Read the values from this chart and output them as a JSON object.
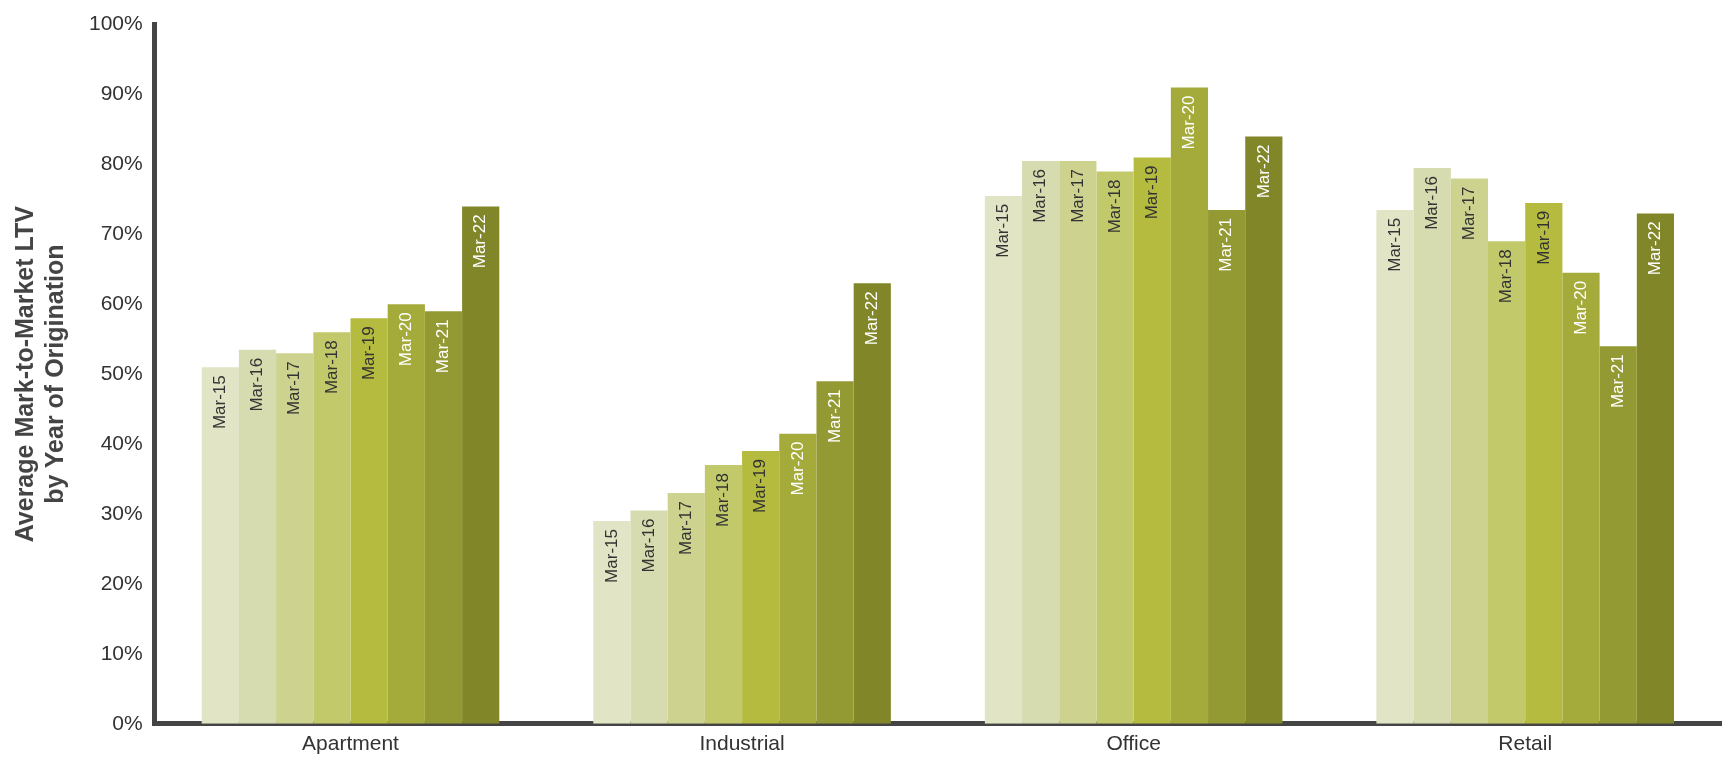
{
  "chart_data": {
    "type": "bar",
    "ylabel": "Average Mark-to-Market LTV\nby Year of Origination",
    "categories": [
      "Apartment",
      "Industrial",
      "Office",
      "Retail"
    ],
    "ylim": [
      0,
      100
    ],
    "yticks": [
      {
        "value": 0,
        "label": "0%"
      },
      {
        "value": 10,
        "label": "10%"
      },
      {
        "value": 20,
        "label": "20%"
      },
      {
        "value": 30,
        "label": "30%"
      },
      {
        "value": 40,
        "label": "40%"
      },
      {
        "value": 50,
        "label": "50%"
      },
      {
        "value": 60,
        "label": "60%"
      },
      {
        "value": 70,
        "label": "70%"
      },
      {
        "value": 80,
        "label": "80%"
      },
      {
        "value": 90,
        "label": "90%"
      },
      {
        "value": 100,
        "label": "100%"
      }
    ],
    "grid": false,
    "legend": false,
    "series": [
      {
        "name": "Mar-15",
        "color": "#e1e4c5",
        "values": [
          51,
          29,
          75.5,
          73.5
        ]
      },
      {
        "name": "Mar-16",
        "color": "#d7dbb0",
        "values": [
          53.5,
          30.5,
          80.5,
          79.5
        ]
      },
      {
        "name": "Mar-17",
        "color": "#cdd38e",
        "values": [
          53,
          33,
          80.5,
          78
        ]
      },
      {
        "name": "Mar-18",
        "color": "#c2c96b",
        "values": [
          56,
          37,
          79,
          69
        ]
      },
      {
        "name": "Mar-19",
        "color": "#b5bb3f",
        "values": [
          58,
          39,
          81,
          74.5
        ]
      },
      {
        "name": "Mar-20",
        "color": "#a4ab3a",
        "values": [
          60,
          41.5,
          91,
          64.5
        ]
      },
      {
        "name": "Mar-21",
        "color": "#949a33",
        "values": [
          59,
          49,
          73.5,
          54
        ]
      },
      {
        "name": "Mar-22",
        "color": "#818629",
        "values": [
          74,
          63,
          84,
          73
        ]
      }
    ]
  }
}
